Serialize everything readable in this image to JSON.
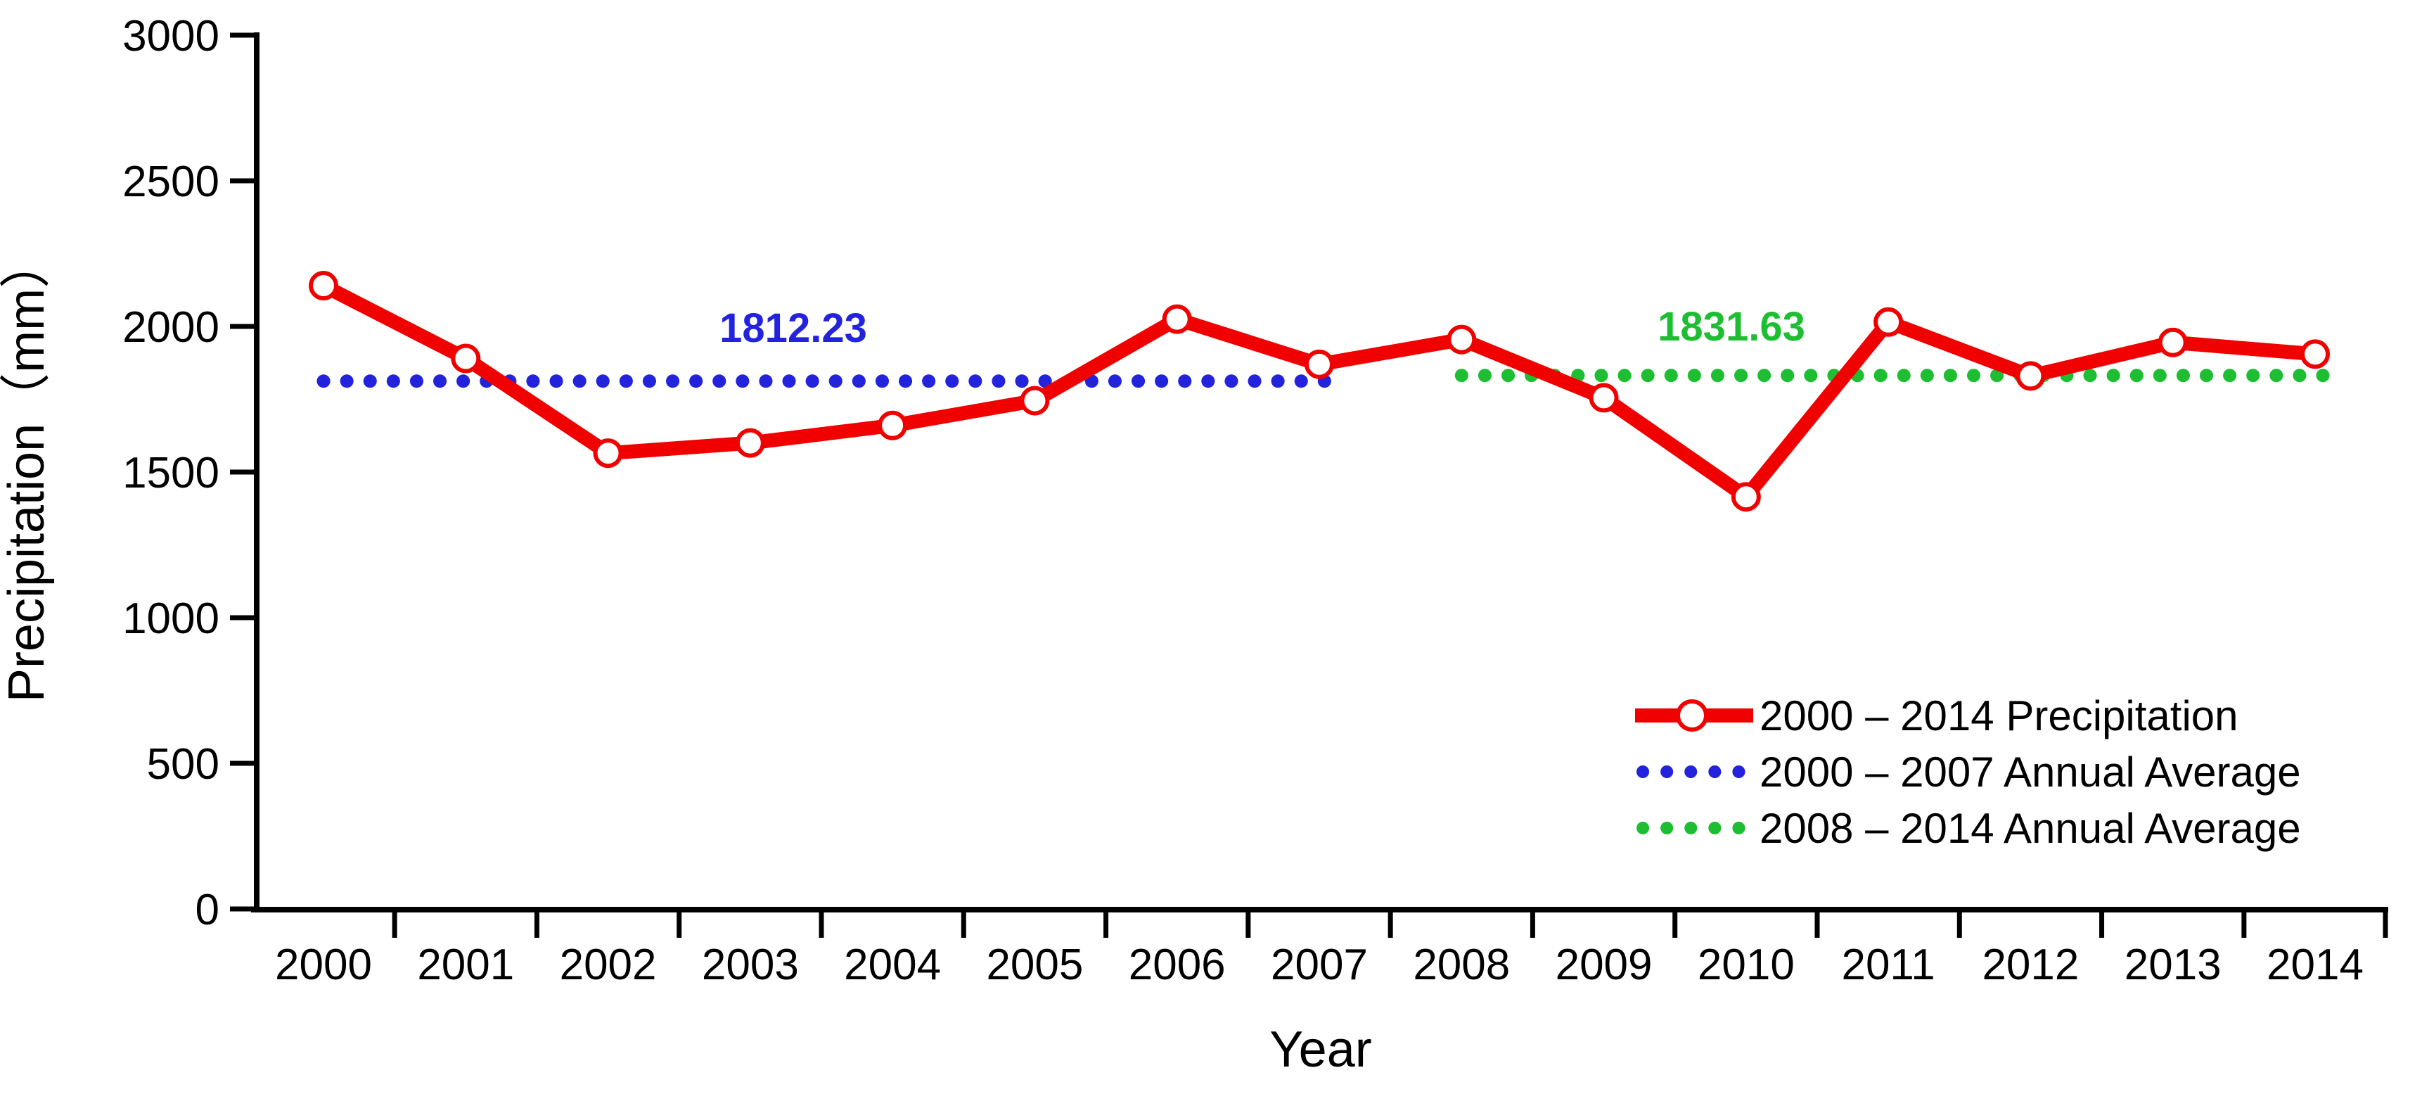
{
  "chart_data": {
    "type": "line",
    "title": "",
    "xlabel": "Year",
    "ylabel": "Precipitation（mm）",
    "x": [
      2000,
      2001,
      2002,
      2003,
      2004,
      2005,
      2006,
      2007,
      2008,
      2009,
      2010,
      2011,
      2012,
      2013,
      2014
    ],
    "series": [
      {
        "name": "2000 – 2014 Precipitation",
        "type": "line-markers",
        "color": "#f10000",
        "marker": "open-circle",
        "values": [
          2140,
          1890,
          1565,
          1600,
          1660,
          1745,
          2025,
          1870,
          1955,
          1755,
          1415,
          2015,
          1830,
          1945,
          1905
        ]
      },
      {
        "name": "2000 – 2007 Annual Average",
        "type": "dotted-hline",
        "color": "#2323de",
        "value": 1812.23,
        "label": "1812.23",
        "span_years": [
          2000,
          2007
        ]
      },
      {
        "name": "2008 – 2014 Annual Average",
        "type": "dotted-hline",
        "color": "#1ebe32",
        "value": 1831.63,
        "label": "1831.63",
        "span_years": [
          2008,
          2014
        ]
      }
    ],
    "ylim": [
      0,
      3000
    ],
    "yticks": [
      0,
      500,
      1000,
      1500,
      2000,
      2500,
      3000
    ],
    "grid": false,
    "legend_position": "lower right",
    "axis_color": "#000000",
    "background_color": "#ffffff"
  }
}
